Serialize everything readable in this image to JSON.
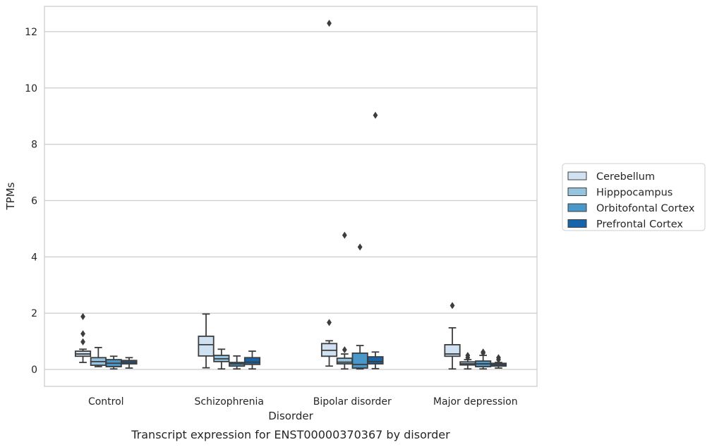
{
  "caption": "Transcript expression for ENST00000370367 by disorder",
  "chart_data": {
    "type": "box",
    "title": "",
    "xlabel": "Disorder",
    "ylabel": "TPMs",
    "ylim": [
      -0.6,
      12.9
    ],
    "yticks": [
      0,
      2,
      4,
      6,
      8,
      10,
      12
    ],
    "grid": "horizontal",
    "legend_position": "right",
    "categories": [
      "Control",
      "Schizophrenia",
      "Bipolar disorder",
      "Major depression"
    ],
    "series": [
      {
        "name": "Cerebellum",
        "color": "#d0e1f2",
        "boxes": [
          {
            "whislo": 0.25,
            "q1": 0.47,
            "med": 0.55,
            "q3": 0.65,
            "whishi": 0.72,
            "fliers": [
              1.88,
              1.27,
              0.98
            ]
          },
          {
            "whislo": 0.06,
            "q1": 0.48,
            "med": 0.88,
            "q3": 1.18,
            "whishi": 1.97,
            "fliers": []
          },
          {
            "whislo": 0.12,
            "q1": 0.47,
            "med": 0.68,
            "q3": 0.92,
            "whishi": 1.02,
            "fliers": [
              12.3,
              1.67
            ]
          },
          {
            "whislo": 0.02,
            "q1": 0.47,
            "med": 0.55,
            "q3": 0.88,
            "whishi": 1.48,
            "fliers": [
              2.27
            ]
          }
        ]
      },
      {
        "name": "Hipppocampus",
        "color": "#94c4df",
        "boxes": [
          {
            "whislo": 0.1,
            "q1": 0.15,
            "med": 0.28,
            "q3": 0.42,
            "whishi": 0.78,
            "fliers": []
          },
          {
            "whislo": 0.02,
            "q1": 0.28,
            "med": 0.38,
            "q3": 0.5,
            "whishi": 0.72,
            "fliers": []
          },
          {
            "whislo": 0.02,
            "q1": 0.2,
            "med": 0.26,
            "q3": 0.4,
            "whishi": 0.55,
            "fliers": [
              4.77,
              0.7
            ]
          },
          {
            "whislo": 0.02,
            "q1": 0.16,
            "med": 0.2,
            "q3": 0.27,
            "whishi": 0.35,
            "fliers": [
              0.5,
              0.42
            ]
          }
        ]
      },
      {
        "name": "Orbitofontal Cortex",
        "color": "#4a98c9",
        "boxes": [
          {
            "whislo": 0.02,
            "q1": 0.1,
            "med": 0.22,
            "q3": 0.35,
            "whishi": 0.47,
            "fliers": []
          },
          {
            "whislo": 0.02,
            "q1": 0.12,
            "med": 0.2,
            "q3": 0.25,
            "whishi": 0.48,
            "fliers": []
          },
          {
            "whislo": 0.02,
            "q1": 0.05,
            "med": 0.18,
            "q3": 0.58,
            "whishi": 0.85,
            "fliers": [
              4.35
            ]
          },
          {
            "whislo": 0.02,
            "q1": 0.1,
            "med": 0.2,
            "q3": 0.3,
            "whishi": 0.5,
            "fliers": [
              0.62,
              0.58
            ]
          }
        ]
      },
      {
        "name": "Prefrontal Cortex",
        "color": "#1764ab",
        "boxes": [
          {
            "whislo": 0.05,
            "q1": 0.2,
            "med": 0.26,
            "q3": 0.32,
            "whishi": 0.42,
            "fliers": []
          },
          {
            "whislo": 0.02,
            "q1": 0.18,
            "med": 0.26,
            "q3": 0.42,
            "whishi": 0.65,
            "fliers": []
          },
          {
            "whislo": 0.03,
            "q1": 0.2,
            "med": 0.28,
            "q3": 0.45,
            "whishi": 0.62,
            "fliers": [
              9.03
            ]
          },
          {
            "whislo": 0.05,
            "q1": 0.12,
            "med": 0.17,
            "q3": 0.22,
            "whishi": 0.25,
            "fliers": [
              0.42,
              0.35
            ]
          }
        ]
      }
    ]
  }
}
